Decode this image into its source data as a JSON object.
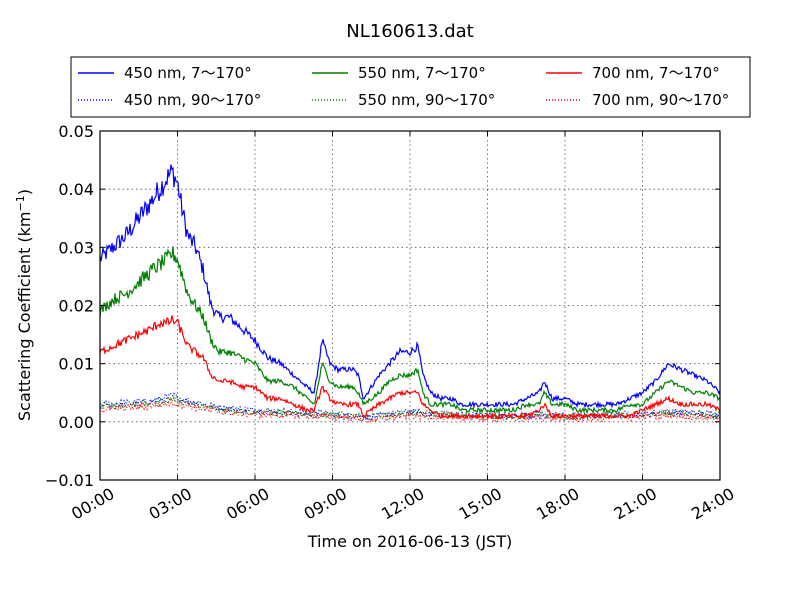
{
  "chart_data": {
    "type": "line",
    "title": "NL160613.dat",
    "xlabel": "Time on 2016-06-13 (JST)",
    "ylabel_main": "Scattering Coefficient (km",
    "ylabel_sup": "−1",
    "ylabel_end": ")",
    "x_unit": "hour",
    "xlim": [
      0,
      24
    ],
    "ylim": [
      -0.01,
      0.05
    ],
    "x_ticks": [
      0,
      3,
      6,
      9,
      12,
      15,
      18,
      21,
      24
    ],
    "x_tick_labels": [
      "00:00",
      "03:00",
      "06:00",
      "09:00",
      "12:00",
      "15:00",
      "18:00",
      "21:00",
      "24:00"
    ],
    "y_ticks": [
      -0.01,
      0.0,
      0.01,
      0.02,
      0.03,
      0.04,
      0.05
    ],
    "y_tick_labels": [
      "−0.01",
      "0.00",
      "0.01",
      "0.02",
      "0.03",
      "0.04",
      "0.05"
    ],
    "grid": true,
    "legend_position": "top",
    "series": [
      {
        "name": "450 nm, 7～170°",
        "color": "#0000ff",
        "style": "solid",
        "x": [
          0,
          0.5,
          1,
          1.5,
          2,
          2.3,
          2.6,
          2.8,
          3,
          3.2,
          3.4,
          3.7,
          4,
          4.3,
          4.6,
          5,
          5.5,
          6,
          6.5,
          7,
          7.5,
          8,
          8.3,
          8.6,
          8.9,
          9.2,
          9.5,
          9.8,
          10,
          10.2,
          10.5,
          10.8,
          11.2,
          11.6,
          12,
          12.3,
          12.5,
          12.8,
          13.2,
          13.6,
          14,
          14.5,
          15,
          15.5,
          16,
          16.5,
          17,
          17.2,
          17.5,
          18,
          18.5,
          19,
          19.5,
          20,
          20.5,
          21,
          21.5,
          22,
          22.5,
          23,
          23.5,
          24
        ],
        "y": [
          0.028,
          0.03,
          0.032,
          0.035,
          0.038,
          0.04,
          0.042,
          0.043,
          0.041,
          0.036,
          0.032,
          0.03,
          0.026,
          0.02,
          0.018,
          0.018,
          0.016,
          0.014,
          0.011,
          0.01,
          0.008,
          0.006,
          0.005,
          0.014,
          0.01,
          0.009,
          0.009,
          0.009,
          0.008,
          0.004,
          0.006,
          0.008,
          0.01,
          0.012,
          0.012,
          0.013,
          0.008,
          0.005,
          0.004,
          0.004,
          0.003,
          0.003,
          0.003,
          0.003,
          0.003,
          0.004,
          0.005,
          0.007,
          0.004,
          0.004,
          0.003,
          0.003,
          0.003,
          0.003,
          0.004,
          0.005,
          0.007,
          0.01,
          0.009,
          0.008,
          0.007,
          0.005
        ]
      },
      {
        "name": "450 nm, 90～170°",
        "color": "#0000ff",
        "style": "dotted",
        "x": [
          0,
          1,
          2,
          2.8,
          3.5,
          4.5,
          6,
          8,
          9,
          10,
          10.5,
          11,
          12,
          13,
          14,
          15,
          16,
          17,
          18,
          19,
          20,
          21,
          22,
          23,
          24
        ],
        "y": [
          0.003,
          0.0032,
          0.0035,
          0.0045,
          0.0035,
          0.0025,
          0.002,
          0.0015,
          0.0013,
          0.001,
          0.0008,
          0.0012,
          0.0017,
          0.0014,
          0.0012,
          0.0011,
          0.001,
          0.0012,
          0.001,
          0.001,
          0.0012,
          0.0014,
          0.0017,
          0.0015,
          0.0012
        ]
      },
      {
        "name": "550 nm, 7～170°",
        "color": "#008000",
        "style": "solid",
        "x": [
          0,
          0.5,
          1,
          1.5,
          2,
          2.3,
          2.6,
          2.8,
          3,
          3.2,
          3.4,
          3.7,
          4,
          4.3,
          4.6,
          5,
          5.5,
          6,
          6.5,
          7,
          7.5,
          8,
          8.3,
          8.6,
          8.9,
          9.2,
          9.5,
          9.8,
          10,
          10.2,
          10.5,
          10.8,
          11.2,
          11.6,
          12,
          12.3,
          12.5,
          12.8,
          13.2,
          13.6,
          14,
          14.5,
          15,
          15.5,
          16,
          16.5,
          17,
          17.2,
          17.5,
          18,
          18.5,
          19,
          19.5,
          20,
          20.5,
          21,
          21.5,
          22,
          22.5,
          23,
          23.5,
          24
        ],
        "y": [
          0.019,
          0.021,
          0.022,
          0.024,
          0.026,
          0.027,
          0.028,
          0.029,
          0.028,
          0.025,
          0.022,
          0.02,
          0.018,
          0.014,
          0.012,
          0.012,
          0.011,
          0.01,
          0.007,
          0.007,
          0.006,
          0.004,
          0.003,
          0.01,
          0.007,
          0.006,
          0.006,
          0.006,
          0.005,
          0.003,
          0.004,
          0.005,
          0.007,
          0.008,
          0.008,
          0.009,
          0.005,
          0.003,
          0.003,
          0.003,
          0.002,
          0.002,
          0.002,
          0.002,
          0.002,
          0.003,
          0.003,
          0.005,
          0.003,
          0.003,
          0.002,
          0.002,
          0.002,
          0.002,
          0.003,
          0.003,
          0.005,
          0.007,
          0.006,
          0.005,
          0.005,
          0.004
        ]
      },
      {
        "name": "550 nm, 90～170°",
        "color": "#008000",
        "style": "dotted",
        "x": [
          0,
          1,
          2,
          2.8,
          3.5,
          4.5,
          6,
          8,
          9,
          10,
          10.5,
          11,
          12,
          13,
          14,
          15,
          16,
          17,
          18,
          19,
          20,
          21,
          22,
          23,
          24
        ],
        "y": [
          0.0027,
          0.0029,
          0.0032,
          0.004,
          0.0032,
          0.0022,
          0.0017,
          0.0013,
          0.0012,
          0.0009,
          0.0007,
          0.001,
          0.0015,
          0.0013,
          0.0011,
          0.001,
          0.0009,
          0.0011,
          0.0009,
          0.0009,
          0.0011,
          0.0012,
          0.0015,
          0.0013,
          0.001
        ]
      },
      {
        "name": "700 nm, 7～170°",
        "color": "#ff0000",
        "style": "solid",
        "x": [
          0,
          0.5,
          1,
          1.5,
          2,
          2.3,
          2.6,
          2.8,
          3,
          3.2,
          3.4,
          3.7,
          4,
          4.3,
          4.6,
          5,
          5.5,
          6,
          6.5,
          7,
          7.5,
          8,
          8.3,
          8.6,
          8.9,
          9.2,
          9.5,
          9.8,
          10,
          10.2,
          10.5,
          10.8,
          11.2,
          11.6,
          12,
          12.3,
          12.5,
          12.8,
          13.2,
          13.6,
          14,
          14.5,
          15,
          15.5,
          16,
          16.5,
          17,
          17.2,
          17.5,
          18,
          18.5,
          19,
          19.5,
          20,
          20.5,
          21,
          21.5,
          22,
          22.5,
          23,
          23.5,
          24
        ],
        "y": [
          0.012,
          0.013,
          0.014,
          0.015,
          0.016,
          0.017,
          0.017,
          0.0175,
          0.017,
          0.015,
          0.013,
          0.012,
          0.011,
          0.008,
          0.007,
          0.007,
          0.006,
          0.006,
          0.004,
          0.004,
          0.003,
          0.002,
          0.002,
          0.006,
          0.004,
          0.003,
          0.003,
          0.003,
          0.003,
          0.001,
          0.002,
          0.003,
          0.004,
          0.005,
          0.005,
          0.005,
          0.003,
          0.002,
          0.001,
          0.001,
          0.001,
          0.001,
          0.001,
          0.001,
          0.001,
          0.001,
          0.002,
          0.003,
          0.001,
          0.001,
          0.001,
          0.001,
          0.001,
          0.001,
          0.001,
          0.002,
          0.003,
          0.004,
          0.003,
          0.003,
          0.003,
          0.002
        ]
      },
      {
        "name": "700 nm, 90～170°",
        "color": "#ff0000",
        "style": "dotted",
        "x": [
          0,
          1,
          2,
          2.8,
          3.5,
          4.5,
          6,
          8,
          9,
          10,
          10.5,
          11,
          12,
          13,
          14,
          15,
          16,
          17,
          18,
          19,
          20,
          21,
          22,
          23,
          24
        ],
        "y": [
          0.0022,
          0.0024,
          0.0027,
          0.0033,
          0.0027,
          0.0018,
          0.0013,
          0.001,
          0.0009,
          0.0006,
          0.0004,
          0.0007,
          0.0011,
          0.0009,
          0.0008,
          0.0007,
          0.0006,
          0.0008,
          0.0006,
          0.0006,
          0.0008,
          0.0009,
          0.0011,
          0.0009,
          0.0006
        ]
      }
    ]
  }
}
